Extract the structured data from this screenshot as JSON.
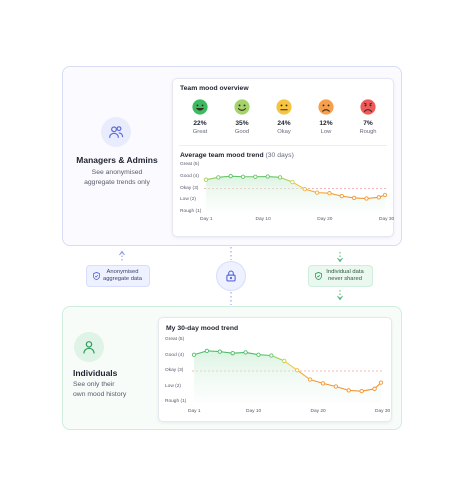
{
  "managers": {
    "title": "Managers & Admins",
    "description_lines": [
      "See anonymised",
      "aggregate trends only"
    ],
    "icon": "users-icon",
    "accent": "#5b6bd6"
  },
  "individuals": {
    "title": "Individuals",
    "description_lines": [
      "See only their",
      "own mood history"
    ],
    "icon": "user-icon",
    "accent": "#2f9e5b"
  },
  "team_overview": {
    "title": "Team mood overview",
    "moods": [
      {
        "label": "Great",
        "percent": "22%",
        "icon": "very-happy-face-icon",
        "color": "#3dbb63"
      },
      {
        "label": "Good",
        "percent": "35%",
        "icon": "smile-face-icon",
        "color": "#a3d36a"
      },
      {
        "label": "Okay",
        "percent": "24%",
        "icon": "neutral-face-icon",
        "color": "#f5c542"
      },
      {
        "label": "Low",
        "percent": "12%",
        "icon": "sad-face-icon",
        "color": "#f6a04d"
      },
      {
        "label": "Rough",
        "percent": "7%",
        "icon": "upset-face-icon",
        "color": "#ee5a5a"
      }
    ]
  },
  "team_trend": {
    "title": "Average team mood trend",
    "subtitle": "(30 days)",
    "y_labels": [
      "Great (5)",
      "Good (4)",
      "Okay (3)",
      "Low (2)",
      "Rough (1)"
    ],
    "x_labels": [
      "Day 1",
      "Day 10",
      "Day 20",
      "Day 30"
    ]
  },
  "personal_trend": {
    "title": "My 30-day mood trend",
    "y_labels": [
      "Great (5)",
      "Good (4)",
      "Okay (3)",
      "Low (2)",
      "Rough (1)"
    ],
    "x_labels": [
      "Day 1",
      "Day 10",
      "Day 20",
      "Day 30"
    ]
  },
  "badges": {
    "anonymised": {
      "lines": [
        "Anonymised",
        "aggregate data"
      ],
      "icon": "shield-check-icon"
    },
    "never_shared": {
      "lines": [
        "Individual data",
        "never shared"
      ],
      "icon": "shield-check-icon"
    }
  },
  "lock": {
    "icon": "lock-icon"
  },
  "chart_data": [
    {
      "type": "line",
      "title": "Average team mood trend (30 days)",
      "ylim": [
        1,
        5
      ],
      "y_ticks": [
        "Rough (1)",
        "Low (2)",
        "Okay (3)",
        "Good (4)",
        "Great (5)"
      ],
      "x_ticks": [
        "Day 1",
        "Day 10",
        "Day 20",
        "Day 30"
      ],
      "reference_line": 3,
      "series": [
        {
          "x": [
            1,
            3,
            5,
            7,
            9,
            11,
            13,
            15,
            17,
            19,
            21,
            23,
            25,
            27,
            29,
            30
          ],
          "values": [
            3.75,
            3.95,
            4.05,
            4.0,
            4.0,
            4.02,
            3.95,
            3.55,
            2.95,
            2.65,
            2.6,
            2.35,
            2.2,
            2.15,
            2.25,
            2.45
          ]
        }
      ]
    },
    {
      "type": "line",
      "title": "My 30-day mood trend",
      "ylim": [
        1,
        5
      ],
      "y_ticks": [
        "Rough (1)",
        "Low (2)",
        "Okay (3)",
        "Good (4)",
        "Great (5)"
      ],
      "x_ticks": [
        "Day 1",
        "Day 10",
        "Day 20",
        "Day 30"
      ],
      "reference_line": 3,
      "series": [
        {
          "x": [
            1,
            3,
            5,
            7,
            9,
            11,
            13,
            15,
            17,
            19,
            21,
            23,
            25,
            27,
            29,
            30
          ],
          "values": [
            4.05,
            4.3,
            4.25,
            4.15,
            4.2,
            4.05,
            4.0,
            3.65,
            3.05,
            2.45,
            2.2,
            2.0,
            1.75,
            1.7,
            1.85,
            2.25
          ]
        }
      ]
    }
  ]
}
